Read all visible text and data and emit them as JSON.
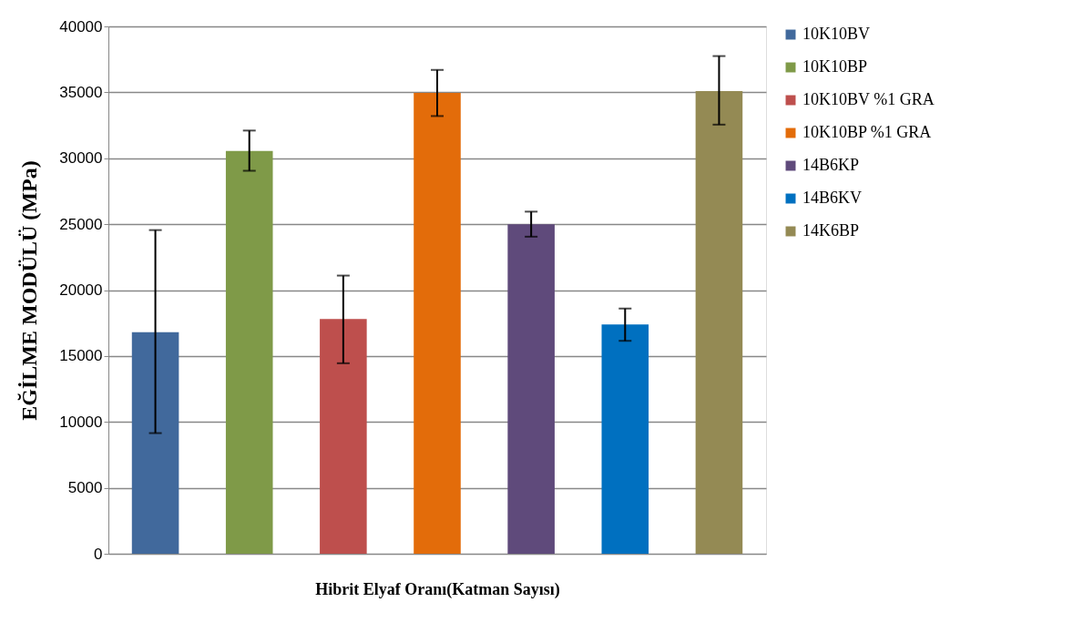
{
  "chart_data": {
    "type": "bar",
    "categories": [
      null,
      null,
      null,
      null,
      null,
      null,
      null
    ],
    "series": [
      {
        "name": "10K10BV",
        "color": "#41699c",
        "values": [
          16800,
          null,
          null,
          null,
          null,
          null,
          null
        ],
        "errors": [
          [
            9150,
            24550
          ],
          null,
          null,
          null,
          null,
          null,
          null
        ]
      },
      {
        "name": "10K10BP",
        "color": "#7f9a48",
        "values": [
          null,
          30550,
          null,
          null,
          null,
          null,
          null
        ],
        "errors": [
          null,
          [
            29050,
            32100
          ],
          null,
          null,
          null,
          null,
          null
        ]
      },
      {
        "name": "10K10BV %1 GRA",
        "color": "#be4f4d",
        "values": [
          null,
          null,
          17800,
          null,
          null,
          null,
          null
        ],
        "errors": [
          null,
          null,
          [
            14450,
            21100
          ],
          null,
          null,
          null,
          null
        ]
      },
      {
        "name": "10K10BP %1 GRA",
        "color": "#e36c0a",
        "values": [
          null,
          null,
          null,
          34950,
          null,
          null,
          null
        ],
        "errors": [
          null,
          null,
          null,
          [
            33200,
            36700
          ],
          null,
          null,
          null
        ]
      },
      {
        "name": "14B6KP",
        "color": "#5f4a7b",
        "values": [
          null,
          null,
          null,
          null,
          25000,
          null,
          null
        ],
        "errors": [
          null,
          null,
          null,
          null,
          [
            24050,
            25950
          ],
          null,
          null
        ]
      },
      {
        "name": "14B6KV",
        "color": "#0070c0",
        "values": [
          null,
          null,
          null,
          null,
          null,
          17400,
          null
        ],
        "errors": [
          null,
          null,
          null,
          null,
          null,
          [
            16150,
            18600
          ],
          null
        ]
      },
      {
        "name": "14K6BP",
        "color": "#948a54",
        "values": [
          null,
          null,
          null,
          null,
          null,
          null,
          35100
        ],
        "errors": [
          null,
          null,
          null,
          null,
          null,
          null,
          [
            32550,
            37750
          ]
        ]
      }
    ],
    "ylim": [
      0,
      40000
    ],
    "yticks": [
      0,
      5000,
      10000,
      15000,
      20000,
      25000,
      30000,
      35000,
      40000
    ],
    "ylabel": "EĞİLME  MODÜLÜ   (MPa)",
    "xlabel": "Hibrit Elyaf Oranı(Katman Sayısı)",
    "grid": "y",
    "legend": "right",
    "tick_labels": "y"
  }
}
